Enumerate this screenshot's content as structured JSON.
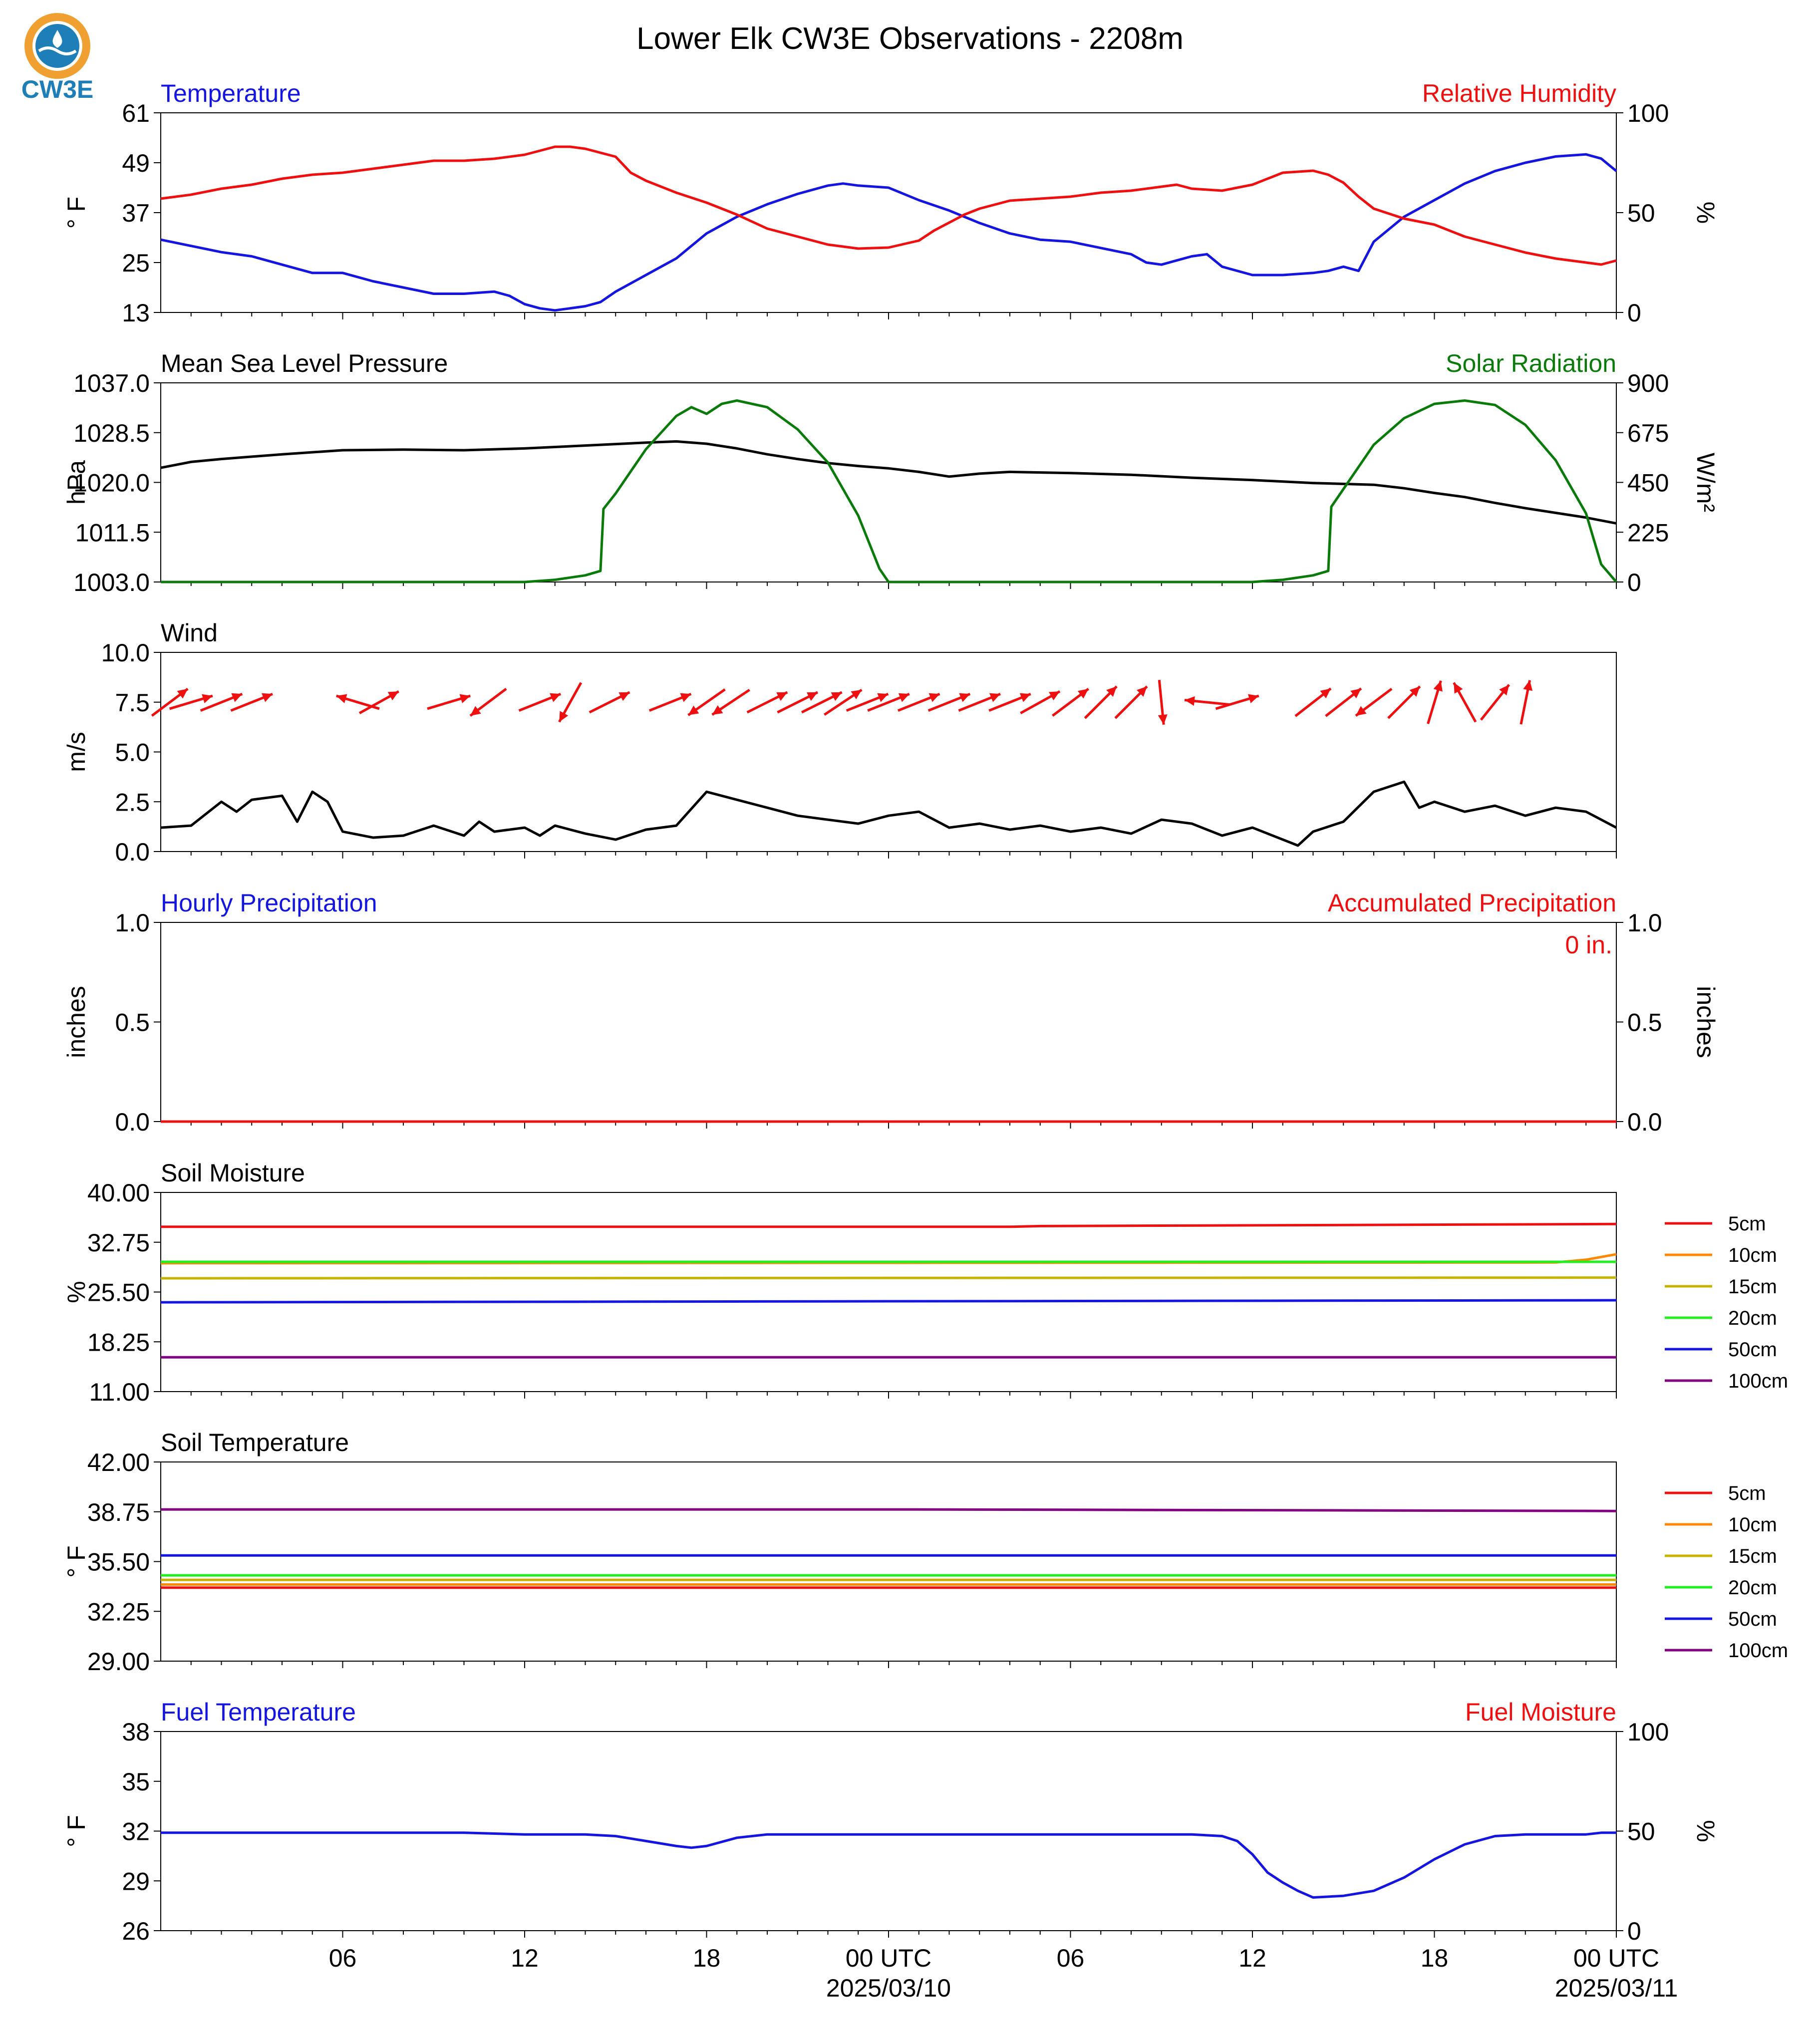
{
  "title": "Lower Elk CW3E Observations - 2208m",
  "logo": {
    "text": "CW3E",
    "colors": {
      "ring": "#f0a030",
      "water": "#1e7fb8",
      "text": "#1e7fb8"
    }
  },
  "time_axis": {
    "start_hour": 0,
    "end_hour": 48,
    "tick_labels": [
      "06",
      "12",
      "18",
      "00 UTC",
      "06",
      "12",
      "18",
      "00 UTC"
    ],
    "tick_hours": [
      6,
      12,
      18,
      24,
      30,
      36,
      42,
      48
    ],
    "date_labels": [
      "2025/03/10",
      "2025/03/11"
    ],
    "date_hours": [
      24,
      48
    ]
  },
  "colors": {
    "blue": "#1515e0",
    "red": "#ee1010",
    "green": "#0a7a0a",
    "black": "#000000"
  },
  "chart_data": [
    {
      "id": "temp_rh",
      "type": "line",
      "left_title": "Temperature",
      "right_title": "Relative Humidity",
      "left_ylabel": "° F",
      "right_ylabel": "%",
      "left_ylim": [
        13,
        61
      ],
      "left_ticks": [
        "61",
        "49",
        "37",
        "25",
        "13"
      ],
      "right_ylim": [
        0,
        100
      ],
      "right_ticks": [
        "100",
        "50",
        "0"
      ],
      "series": [
        {
          "name": "Temperature",
          "axis": "left",
          "color": "#1515e0",
          "x": [
            0,
            1,
            2,
            3,
            4,
            5,
            6,
            7,
            8,
            9,
            10,
            11,
            11.5,
            12,
            12.5,
            13,
            13.5,
            14,
            14.5,
            15,
            16,
            17,
            17.5,
            18,
            18.5,
            19,
            20,
            21,
            22,
            22.5,
            23,
            24,
            25,
            26,
            27,
            28,
            29,
            30,
            31,
            32,
            32.5,
            33,
            33.5,
            34,
            34.5,
            35,
            36,
            37,
            38,
            38.5,
            39,
            39.5,
            40,
            41,
            42,
            43,
            44,
            45,
            46,
            47,
            47.5,
            48
          ],
          "y": [
            30.5,
            29,
            27.5,
            26.5,
            24.5,
            22.5,
            22.5,
            20.5,
            19,
            17.5,
            17.5,
            18,
            17,
            15,
            14,
            13.5,
            14,
            14.5,
            15.5,
            18,
            22,
            26,
            29,
            32,
            34,
            36,
            39,
            41.5,
            43.5,
            44,
            43.5,
            43,
            40,
            37.5,
            34.5,
            32,
            30.5,
            30,
            28.5,
            27,
            25,
            24.5,
            25.5,
            26.5,
            27,
            24,
            22,
            22,
            22.5,
            23,
            24,
            23,
            30,
            36,
            40,
            44,
            47,
            49,
            50.5,
            51,
            50,
            47
          ]
        },
        {
          "name": "Relative Humidity",
          "axis": "right",
          "color": "#ee1010",
          "x": [
            0,
            1,
            2,
            3,
            4,
            5,
            6,
            7,
            8,
            9,
            10,
            11,
            12,
            12.5,
            13,
            13.5,
            14,
            14.5,
            15,
            15.5,
            16,
            17,
            18,
            19,
            20,
            21,
            22,
            23,
            24,
            25,
            25.5,
            26,
            26.5,
            27,
            28,
            29,
            30,
            31,
            32,
            33,
            33.5,
            34,
            35,
            36,
            37,
            38,
            38.5,
            39,
            39.5,
            40,
            41,
            42,
            43,
            44,
            45,
            46,
            47,
            47.5,
            48
          ],
          "y": [
            57,
            59,
            62,
            64,
            67,
            69,
            70,
            72,
            74,
            76,
            76,
            77,
            79,
            81,
            83,
            83,
            82,
            80,
            78,
            70,
            66,
            60,
            55,
            49,
            42,
            38,
            34,
            32,
            32.5,
            36,
            41,
            45,
            49,
            52,
            56,
            57,
            58,
            60,
            61,
            63,
            64,
            62,
            61,
            64,
            70,
            71,
            69,
            65,
            58,
            52,
            47,
            44,
            38,
            34,
            30,
            27,
            25,
            24,
            26
          ]
        }
      ]
    },
    {
      "id": "pressure_solar",
      "type": "line",
      "left_title": "Mean Sea Level Pressure",
      "right_title": "Solar Radiation",
      "left_ylabel": "hPa",
      "right_ylabel": "W/m²",
      "left_ylim": [
        1003.0,
        1037.0
      ],
      "left_ticks": [
        "1037.0",
        "1028.5",
        "1020.0",
        "1011.5",
        "1003.0"
      ],
      "right_ylim": [
        0,
        900
      ],
      "right_ticks": [
        "900",
        "675",
        "450",
        "225",
        "0"
      ],
      "series": [
        {
          "name": "Mean Sea Level Pressure",
          "axis": "left",
          "color": "#000000",
          "x": [
            0,
            1,
            2,
            4,
            6,
            8,
            10,
            12,
            14,
            16,
            17,
            18,
            19,
            20,
            21,
            22,
            23,
            24,
            25,
            26,
            27,
            28,
            30,
            32,
            34,
            36,
            38,
            40,
            41,
            42,
            43,
            44,
            45,
            46,
            47,
            48
          ],
          "y": [
            1022.5,
            1023.5,
            1024.0,
            1024.8,
            1025.5,
            1025.6,
            1025.5,
            1025.8,
            1026.3,
            1026.8,
            1027.0,
            1026.6,
            1025.8,
            1024.8,
            1024.0,
            1023.3,
            1022.8,
            1022.4,
            1021.8,
            1021.0,
            1021.5,
            1021.8,
            1021.6,
            1021.3,
            1020.8,
            1020.4,
            1019.9,
            1019.6,
            1019.0,
            1018.2,
            1017.5,
            1016.5,
            1015.6,
            1014.8,
            1014.0,
            1013.0
          ]
        },
        {
          "name": "Solar Radiation",
          "axis": "right",
          "color": "#0a7a0a",
          "x": [
            0,
            12,
            13,
            14,
            14.5,
            14.6,
            15,
            16,
            17,
            17.5,
            18,
            18.5,
            19,
            20,
            21,
            22,
            23,
            23.7,
            24,
            36,
            37,
            38,
            38.5,
            38.6,
            39,
            40,
            41,
            42,
            43,
            44,
            45,
            46,
            47,
            47.5,
            48
          ],
          "y": [
            0,
            0,
            10,
            30,
            50,
            330,
            400,
            600,
            750,
            790,
            760,
            805,
            820,
            790,
            690,
            540,
            300,
            60,
            0,
            0,
            10,
            30,
            50,
            340,
            420,
            620,
            740,
            805,
            820,
            800,
            710,
            550,
            310,
            80,
            0
          ]
        }
      ]
    },
    {
      "id": "wind",
      "type": "line",
      "left_title": "Wind",
      "left_ylabel": "m/s",
      "left_ylim": [
        0.0,
        10.0
      ],
      "left_ticks": [
        "10.0",
        "7.5",
        "5.0",
        "2.5",
        "0.0"
      ],
      "series": [
        {
          "name": "Wind Speed",
          "axis": "left",
          "color": "#000000",
          "x": [
            0,
            1,
            2,
            2.5,
            3,
            4,
            4.5,
            5,
            5.5,
            6,
            7,
            8,
            9,
            10,
            10.5,
            11,
            12,
            12.5,
            13,
            14,
            15,
            16,
            17,
            18,
            19,
            20,
            21,
            22,
            23,
            24,
            25,
            26,
            27,
            28,
            29,
            30,
            31,
            32,
            33,
            34,
            35,
            36,
            37,
            37.5,
            38,
            39,
            40,
            41,
            41.5,
            42,
            43,
            44,
            45,
            46,
            47,
            48
          ],
          "y": [
            1.2,
            1.3,
            2.5,
            2.0,
            2.6,
            2.8,
            1.5,
            3.0,
            2.5,
            1.0,
            0.7,
            0.8,
            1.3,
            0.8,
            1.5,
            1.0,
            1.2,
            0.8,
            1.3,
            0.9,
            0.6,
            1.1,
            1.3,
            3.0,
            2.6,
            2.2,
            1.8,
            1.6,
            1.4,
            1.8,
            2.0,
            1.2,
            1.4,
            1.1,
            1.3,
            1.0,
            1.2,
            0.9,
            1.6,
            1.4,
            0.8,
            1.2,
            0.6,
            0.3,
            1.0,
            1.5,
            3.0,
            3.5,
            2.2,
            2.5,
            2.0,
            2.3,
            1.8,
            2.2,
            2.0,
            1.2
          ]
        }
      ],
      "arrows": {
        "color": "#ee1010",
        "x": [
          0.3,
          1.0,
          2.0,
          3.0,
          6.5,
          7.2,
          9.5,
          10.8,
          12.5,
          13.5,
          14.8,
          16.8,
          18.0,
          18.8,
          20.0,
          21.0,
          21.8,
          22.5,
          23.3,
          24.0,
          25.0,
          26.0,
          27.0,
          28.0,
          29.0,
          30.0,
          31.0,
          32.0,
          33.0,
          34.5,
          35.5,
          38.0,
          39.0,
          40.0,
          41.0,
          42.0,
          43.0,
          44.0,
          45.0
        ],
        "u": [
          0.8,
          1.0,
          1.0,
          1.0,
          -1.0,
          0.9,
          1.0,
          -0.8,
          1.0,
          -0.5,
          1.0,
          1.0,
          -1.0,
          -0.9,
          1.0,
          1.0,
          1.0,
          0.9,
          1.0,
          1.0,
          1.0,
          1.0,
          1.0,
          1.0,
          0.9,
          0.8,
          0.7,
          0.7,
          0.1,
          -1.0,
          1.0,
          0.9,
          0.9,
          -0.8,
          0.7,
          0.3,
          -0.5,
          0.8,
          0.2
        ],
        "v": [
          0.6,
          0.3,
          0.4,
          0.4,
          0.3,
          0.5,
          0.3,
          -0.6,
          0.4,
          -0.9,
          0.5,
          0.4,
          -0.7,
          -0.6,
          0.5,
          0.5,
          0.5,
          0.6,
          0.4,
          0.4,
          0.4,
          0.4,
          0.4,
          0.4,
          0.5,
          0.6,
          0.7,
          0.7,
          -1.0,
          0.1,
          0.3,
          0.7,
          0.7,
          -0.6,
          0.7,
          1.0,
          0.9,
          1.0,
          1.0
        ]
      }
    },
    {
      "id": "precip",
      "type": "line",
      "left_title": "Hourly Precipitation",
      "right_title": "Accumulated Precipitation",
      "left_ylabel": "inches",
      "right_ylabel": "inches",
      "left_ylim": [
        0.0,
        1.0
      ],
      "left_ticks": [
        "1.0",
        "0.5",
        "0.0"
      ],
      "right_ylim": [
        0.0,
        1.0
      ],
      "right_ticks": [
        "1.0",
        "0.5",
        "0.0"
      ],
      "annotation": "0 in.",
      "series": [
        {
          "name": "Accumulated Precipitation",
          "axis": "right",
          "color": "#ee1010",
          "x": [
            0,
            48
          ],
          "y": [
            0,
            0
          ]
        }
      ]
    },
    {
      "id": "soil_moisture",
      "type": "line",
      "left_title": "Soil Moisture",
      "left_ylabel": "%",
      "left_ylim": [
        11.0,
        40.0
      ],
      "left_ticks": [
        "40.00",
        "32.75",
        "25.50",
        "18.25",
        "11.00"
      ],
      "legend": [
        "5cm",
        "10cm",
        "15cm",
        "20cm",
        "50cm",
        "100cm"
      ],
      "series": [
        {
          "name": "5cm",
          "axis": "left",
          "color": "#ee1010",
          "x": [
            0,
            28,
            29,
            48
          ],
          "y": [
            35.0,
            35.0,
            35.1,
            35.4
          ]
        },
        {
          "name": "10cm",
          "axis": "left",
          "color": "#ff8800",
          "x": [
            0,
            46,
            47,
            48
          ],
          "y": [
            29.7,
            29.8,
            30.2,
            31.0
          ]
        },
        {
          "name": "15cm",
          "axis": "left",
          "color": "#c8b400",
          "x": [
            0,
            48
          ],
          "y": [
            27.5,
            27.6
          ]
        },
        {
          "name": "20cm",
          "axis": "left",
          "color": "#22ee22",
          "x": [
            0,
            48
          ],
          "y": [
            29.9,
            29.9
          ]
        },
        {
          "name": "50cm",
          "axis": "left",
          "color": "#1515e0",
          "x": [
            0,
            48
          ],
          "y": [
            24.0,
            24.3
          ]
        },
        {
          "name": "100cm",
          "axis": "left",
          "color": "#800080",
          "x": [
            0,
            48
          ],
          "y": [
            16.0,
            16.0
          ]
        }
      ]
    },
    {
      "id": "soil_temp",
      "type": "line",
      "left_title": "Soil Temperature",
      "left_ylabel": "° F",
      "left_ylim": [
        29.0,
        42.0
      ],
      "left_ticks": [
        "42.00",
        "38.75",
        "35.50",
        "32.25",
        "29.00"
      ],
      "legend": [
        "5cm",
        "10cm",
        "15cm",
        "20cm",
        "50cm",
        "100cm"
      ],
      "series": [
        {
          "name": "5cm",
          "axis": "left",
          "color": "#ee1010",
          "x": [
            0,
            48
          ],
          "y": [
            33.8,
            33.8
          ]
        },
        {
          "name": "10cm",
          "axis": "left",
          "color": "#ff8800",
          "x": [
            0,
            48
          ],
          "y": [
            34.0,
            34.0
          ]
        },
        {
          "name": "15cm",
          "axis": "left",
          "color": "#c8b400",
          "x": [
            0,
            48
          ],
          "y": [
            34.3,
            34.3
          ]
        },
        {
          "name": "20cm",
          "axis": "left",
          "color": "#22ee22",
          "x": [
            0,
            48
          ],
          "y": [
            34.6,
            34.6
          ]
        },
        {
          "name": "50cm",
          "axis": "left",
          "color": "#1515e0",
          "x": [
            0,
            48
          ],
          "y": [
            35.9,
            35.9
          ]
        },
        {
          "name": "100cm",
          "axis": "left",
          "color": "#800080",
          "x": [
            0,
            25,
            48
          ],
          "y": [
            38.9,
            38.9,
            38.8
          ]
        }
      ]
    },
    {
      "id": "fuel",
      "type": "line",
      "left_title": "Fuel Temperature",
      "right_title": "Fuel Moisture",
      "left_ylabel": "° F",
      "right_ylabel": "%",
      "left_ylim": [
        26,
        38
      ],
      "left_ticks": [
        "38",
        "35",
        "32",
        "29",
        "26"
      ],
      "right_ylim": [
        0,
        100
      ],
      "right_ticks": [
        "100",
        "50",
        "0"
      ],
      "series": [
        {
          "name": "Fuel Temperature",
          "axis": "left",
          "color": "#1515e0",
          "x": [
            0,
            4,
            8,
            10,
            12,
            14,
            15,
            16,
            17,
            17.5,
            18,
            19,
            20,
            22,
            24,
            26,
            30,
            34,
            35,
            35.5,
            36,
            36.5,
            37,
            37.5,
            38,
            39,
            40,
            41,
            42,
            43,
            44,
            45,
            46,
            47,
            47.5,
            48
          ],
          "y": [
            31.9,
            31.9,
            31.9,
            31.9,
            31.8,
            31.8,
            31.7,
            31.4,
            31.1,
            31.0,
            31.1,
            31.6,
            31.8,
            31.8,
            31.8,
            31.8,
            31.8,
            31.8,
            31.7,
            31.4,
            30.6,
            29.5,
            28.9,
            28.4,
            28.0,
            28.1,
            28.4,
            29.2,
            30.3,
            31.2,
            31.7,
            31.8,
            31.8,
            31.8,
            31.9,
            31.9
          ]
        }
      ]
    }
  ]
}
